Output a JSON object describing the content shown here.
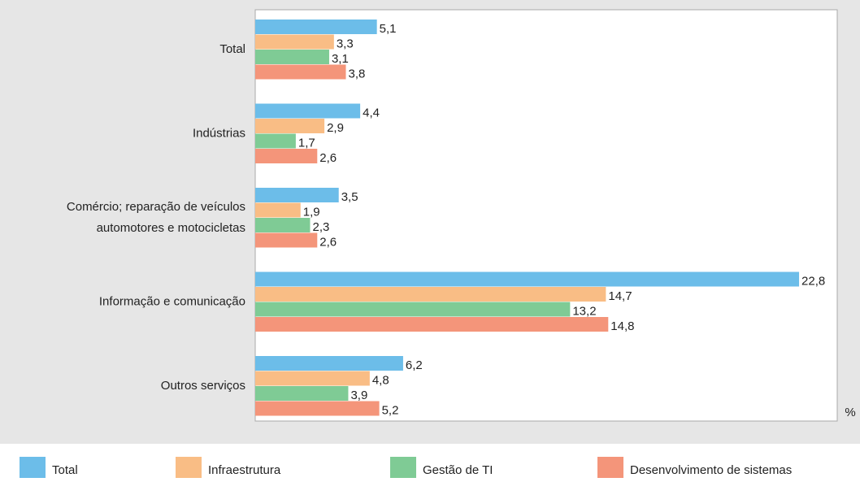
{
  "chart_data": {
    "type": "bar",
    "orientation": "horizontal",
    "unit": "%",
    "categories": [
      "Total",
      "Indústrias",
      "Comércio; reparação de veículos\nautomotores e motocicletas",
      "Informação e comunicação",
      "Outros serviços"
    ],
    "series": [
      {
        "name": "Total",
        "color": "#6cbde9",
        "values": [
          5.1,
          4.4,
          3.5,
          22.8,
          6.2
        ],
        "value_labels": [
          "5,1",
          "4,4",
          "3,5",
          "22,8",
          "6,2"
        ]
      },
      {
        "name": "Infraestrutura",
        "color": "#f9bd85",
        "values": [
          3.3,
          2.9,
          1.9,
          14.7,
          4.8
        ],
        "value_labels": [
          "3,3",
          "2,9",
          "1,9",
          "14,7",
          "4,8"
        ]
      },
      {
        "name": "Gestão de TI",
        "color": "#7fcb95",
        "values": [
          3.1,
          1.7,
          2.3,
          13.2,
          3.9
        ],
        "value_labels": [
          "3,1",
          "1,7",
          "2,3",
          "13,2",
          "3,9"
        ]
      },
      {
        "name": "Desenvolvimento de sistemas",
        "color": "#f4957a",
        "values": [
          3.8,
          2.6,
          2.6,
          14.8,
          5.2
        ],
        "value_labels": [
          "3,8",
          "2,6",
          "2,6",
          "14,8",
          "5,2"
        ]
      }
    ],
    "xlim": [
      0,
      24.4
    ],
    "legend": "bottom"
  }
}
